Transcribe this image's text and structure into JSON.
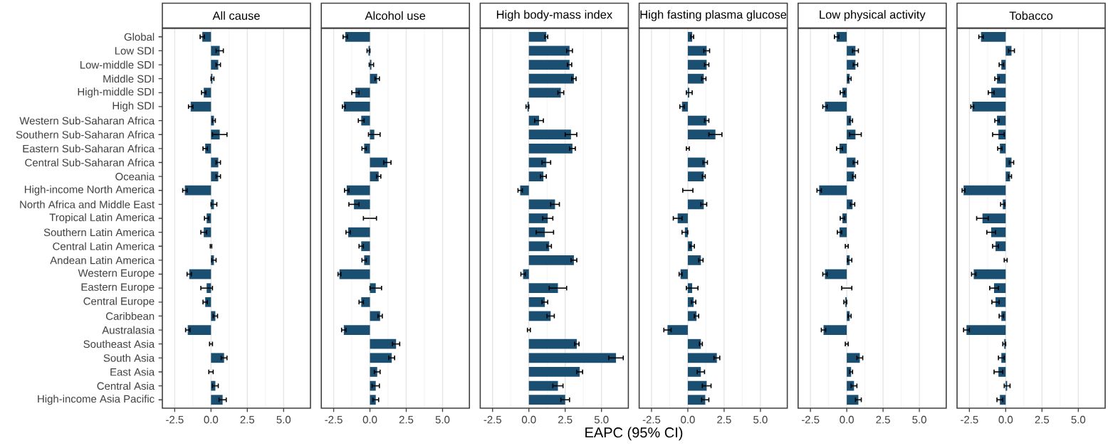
{
  "chart_data": [
    {
      "type": "bar",
      "orientation": "horizontal",
      "title": "All cause",
      "color": "#1b4f72",
      "grid": "x",
      "xlim": [
        -3.35,
        6.85
      ],
      "xticks": [
        {
          "value": -2.5,
          "label": "-2.5"
        },
        {
          "value": 0,
          "label": "0.0"
        },
        {
          "value": 2.5,
          "label": "2.5"
        },
        {
          "value": 5,
          "label": "5.0"
        }
      ],
      "categories": [
        "Global",
        "Low SDI",
        "Low-middle SDI",
        "Middle SDI",
        "High-middle SDI",
        "High SDI",
        "Western Sub-Saharan Africa",
        "Southern Sub-Saharan Africa",
        "Eastern Sub-Saharan Africa",
        "Central Sub-Saharan Africa",
        "Oceania",
        "High-income North America",
        "North Africa and Middle East",
        "Tropical Latin America",
        "Southern Latin America",
        "Central Latin America",
        "Andean Latin America",
        "Western Europe",
        "Eastern Europe",
        "Central Europe",
        "Caribbean",
        "Australasia",
        "Southeast Asia",
        "South Asia",
        "East Asia",
        "Central Asia",
        "High-income Asia Pacific"
      ],
      "values": [
        -0.6,
        0.6,
        0.5,
        0.1,
        -0.5,
        -1.4,
        0.2,
        0.6,
        -0.4,
        0.5,
        0.5,
        -1.8,
        0.2,
        -0.3,
        -0.5,
        0.0,
        0.2,
        -1.5,
        -0.3,
        -0.4,
        0.3,
        -1.6,
        0.0,
        0.9,
        0.0,
        0.3,
        0.8
      ],
      "errors": [
        0.15,
        0.25,
        0.15,
        0.1,
        0.15,
        0.15,
        0.1,
        0.5,
        0.15,
        0.15,
        0.15,
        0.15,
        0.2,
        0.15,
        0.2,
        0.05,
        0.15,
        0.15,
        0.4,
        0.15,
        0.15,
        0.15,
        0.1,
        0.2,
        0.15,
        0.2,
        0.25
      ]
    },
    {
      "type": "bar",
      "orientation": "horizontal",
      "title": "Alcohol use",
      "color": "#1b4f72",
      "grid": "x",
      "tick_labels": "x",
      "xlim": [
        -3.35,
        6.85
      ],
      "xticks": [
        {
          "value": -2.5,
          "label": "-2.5"
        },
        {
          "value": 0,
          "label": "0.0"
        },
        {
          "value": 2.5,
          "label": "2.5"
        },
        {
          "value": 5,
          "label": "5.0"
        }
      ],
      "categories": [
        null,
        null,
        null,
        null,
        null,
        null,
        null,
        null,
        null,
        null,
        null,
        null,
        null,
        null,
        null,
        null,
        null,
        null,
        null,
        null,
        null,
        null,
        null,
        null,
        null,
        null,
        null
      ],
      "values": [
        -1.7,
        -0.1,
        0.1,
        0.5,
        -1.0,
        -1.8,
        -0.6,
        0.3,
        -0.4,
        1.2,
        0.6,
        -1.6,
        -1.1,
        0.0,
        -1.5,
        -0.6,
        -0.4,
        -2.1,
        0.4,
        -0.6,
        0.7,
        -1.8,
        1.8,
        1.5,
        0.5,
        0.4,
        0.4
      ],
      "errors": [
        0.15,
        0.1,
        0.15,
        0.15,
        0.25,
        0.1,
        0.2,
        0.4,
        0.15,
        0.25,
        0.15,
        0.15,
        0.35,
        0.45,
        0.15,
        0.15,
        0.15,
        0.1,
        0.4,
        0.15,
        0.15,
        0.15,
        0.25,
        0.2,
        0.2,
        0.25,
        0.2
      ]
    },
    {
      "type": "bar",
      "orientation": "horizontal",
      "title": "High body-mass index",
      "xlabel": "EAPC (95% CI)",
      "color": "#1b4f72",
      "grid": "x",
      "tick_labels": "x",
      "xlim": [
        -3.35,
        6.85
      ],
      "xticks": [
        {
          "value": -2.5,
          "label": "-2.5"
        },
        {
          "value": 0,
          "label": "0.0"
        },
        {
          "value": 2.5,
          "label": "2.5"
        },
        {
          "value": 5,
          "label": "5.0"
        }
      ],
      "categories": [
        null,
        null,
        null,
        null,
        null,
        null,
        null,
        null,
        null,
        null,
        null,
        null,
        null,
        null,
        null,
        null,
        null,
        null,
        null,
        null,
        null,
        null,
        null,
        null,
        null,
        null,
        null
      ],
      "values": [
        1.2,
        2.8,
        2.8,
        3.1,
        2.2,
        -0.1,
        0.7,
        2.9,
        3.0,
        1.2,
        1.0,
        -0.6,
        1.8,
        1.3,
        1.1,
        1.4,
        3.1,
        -0.4,
        2.0,
        1.1,
        1.5,
        0.0,
        3.3,
        6.0,
        3.5,
        2.0,
        2.5
      ],
      "errors": [
        0.1,
        0.2,
        0.15,
        0.15,
        0.2,
        0.1,
        0.3,
        0.4,
        0.2,
        0.3,
        0.2,
        0.15,
        0.3,
        0.35,
        0.6,
        0.15,
        0.2,
        0.15,
        0.6,
        0.2,
        0.25,
        0.1,
        0.15,
        0.5,
        0.2,
        0.35,
        0.3
      ]
    },
    {
      "type": "bar",
      "orientation": "horizontal",
      "title": "High fasting plasma glucose",
      "color": "#1b4f72",
      "grid": "x",
      "tick_labels": "x",
      "xlim": [
        -3.35,
        6.85
      ],
      "xticks": [
        {
          "value": -2.5,
          "label": "-2.5"
        },
        {
          "value": 0,
          "label": "0.0"
        },
        {
          "value": 2.5,
          "label": "2.5"
        },
        {
          "value": 5,
          "label": "5.0"
        }
      ],
      "categories": [
        null,
        null,
        null,
        null,
        null,
        null,
        null,
        null,
        null,
        null,
        null,
        null,
        null,
        null,
        null,
        null,
        null,
        null,
        null,
        null,
        null,
        null,
        null,
        null,
        null,
        null,
        null
      ],
      "values": [
        0.3,
        1.3,
        1.3,
        1.1,
        0.1,
        -0.4,
        1.3,
        1.9,
        0.0,
        1.2,
        1.1,
        0.0,
        1.1,
        -0.7,
        -0.2,
        0.3,
        0.9,
        -0.5,
        0.3,
        0.4,
        0.6,
        -1.4,
        0.9,
        2.0,
        0.9,
        1.3,
        1.2
      ],
      "errors": [
        0.1,
        0.2,
        0.15,
        0.15,
        0.2,
        0.15,
        0.15,
        0.45,
        0.1,
        0.15,
        0.1,
        0.35,
        0.2,
        0.3,
        0.2,
        0.15,
        0.15,
        0.1,
        0.4,
        0.15,
        0.15,
        0.25,
        0.1,
        0.2,
        0.25,
        0.3,
        0.25
      ]
    },
    {
      "type": "bar",
      "orientation": "horizontal",
      "title": "Low physical activity",
      "color": "#1b4f72",
      "grid": "x",
      "tick_labels": "x",
      "xlim": [
        -3.35,
        6.85
      ],
      "xticks": [
        {
          "value": -2.5,
          "label": "-2.5"
        },
        {
          "value": 0,
          "label": "0.0"
        },
        {
          "value": 2.5,
          "label": "2.5"
        },
        {
          "value": 5,
          "label": "5.0"
        }
      ],
      "categories": [
        null,
        null,
        null,
        null,
        null,
        null,
        null,
        null,
        null,
        null,
        null,
        null,
        null,
        null,
        null,
        null,
        null,
        null,
        null,
        null,
        null,
        null,
        null,
        null,
        null,
        null,
        null
      ],
      "values": [
        -0.7,
        0.6,
        0.6,
        0.2,
        -0.3,
        -1.5,
        0.3,
        0.6,
        -0.5,
        0.6,
        0.5,
        -1.9,
        0.4,
        -0.3,
        -0.5,
        0.0,
        0.2,
        -1.5,
        0.0,
        -0.1,
        0.2,
        -1.6,
        0.0,
        0.9,
        0.3,
        0.5,
        0.8
      ],
      "errors": [
        0.15,
        0.2,
        0.15,
        0.1,
        0.15,
        0.15,
        0.1,
        0.4,
        0.2,
        0.15,
        0.1,
        0.15,
        0.15,
        0.15,
        0.15,
        0.1,
        0.15,
        0.15,
        0.35,
        0.1,
        0.1,
        0.15,
        0.1,
        0.2,
        0.1,
        0.2,
        0.2
      ]
    },
    {
      "type": "bar",
      "orientation": "horizontal",
      "title": "Tobacco",
      "color": "#1b4f72",
      "grid": "x",
      "tick_labels": "x",
      "xlim": [
        -3.35,
        6.85
      ],
      "xticks": [
        {
          "value": -2.5,
          "label": "-2.5"
        },
        {
          "value": 0,
          "label": "0.0"
        },
        {
          "value": 2.5,
          "label": "2.5"
        },
        {
          "value": 5,
          "label": "5.0"
        }
      ],
      "categories": [
        null,
        null,
        null,
        null,
        null,
        null,
        null,
        null,
        null,
        null,
        null,
        null,
        null,
        null,
        null,
        null,
        null,
        null,
        null,
        null,
        null,
        null,
        null,
        null,
        null,
        null,
        null
      ],
      "values": [
        -1.7,
        0.4,
        -0.3,
        -0.6,
        -1.0,
        -2.3,
        -0.6,
        -0.5,
        -0.4,
        0.4,
        0.3,
        -2.9,
        -0.2,
        -1.6,
        -1.0,
        -0.7,
        0.0,
        -2.2,
        -0.8,
        -0.7,
        -0.3,
        -2.7,
        -0.1,
        -0.3,
        -0.5,
        0.1,
        -0.4
      ],
      "errors": [
        0.15,
        0.2,
        0.15,
        0.15,
        0.2,
        0.1,
        0.15,
        0.4,
        0.15,
        0.15,
        0.1,
        0.1,
        0.15,
        0.4,
        0.3,
        0.2,
        0.1,
        0.15,
        0.3,
        0.25,
        0.15,
        0.2,
        0.1,
        0.2,
        0.3,
        0.2,
        0.2
      ]
    }
  ]
}
